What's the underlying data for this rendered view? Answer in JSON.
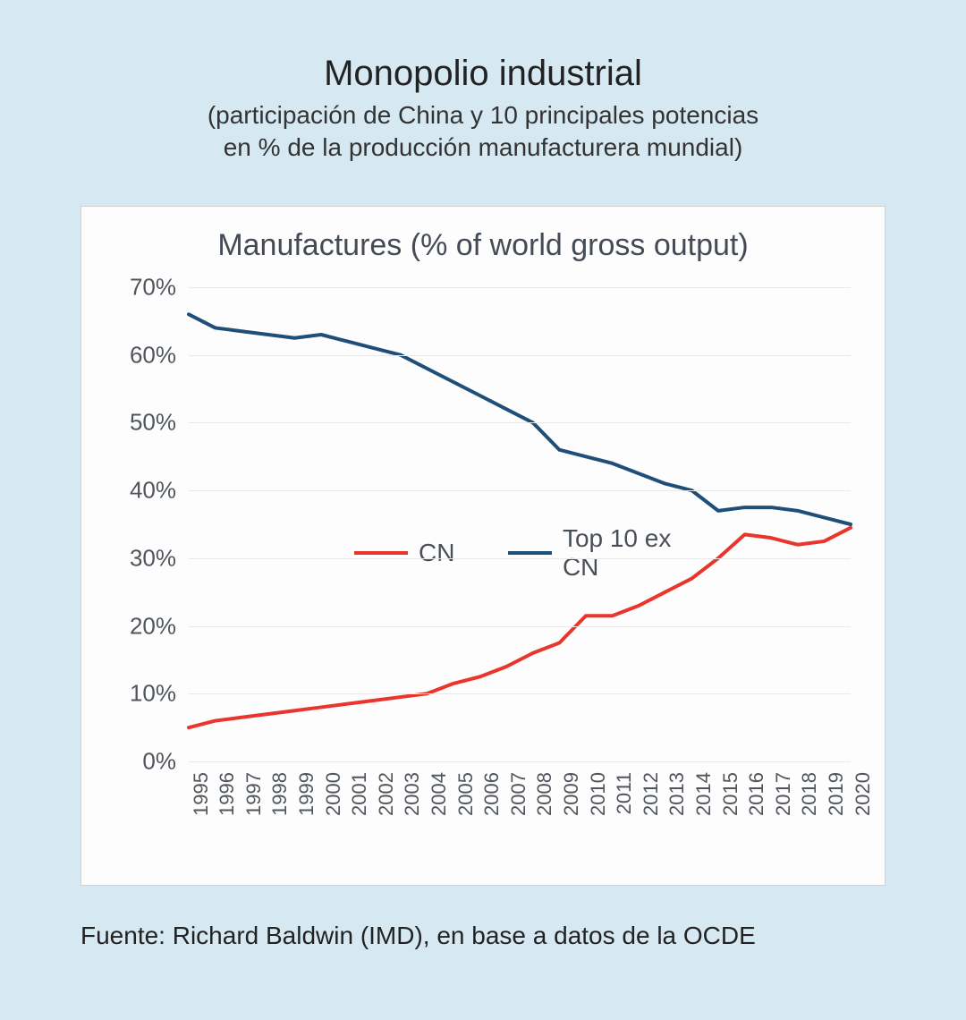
{
  "header": {
    "title": "Monopolio industrial",
    "subtitle_line1": "(participación de China y 10 principales potencias",
    "subtitle_line2": "en % de la producción manufacturera mundial)"
  },
  "chart": {
    "type": "line",
    "title": "Manufactures (% of world gross output)",
    "background_color": "#fdfdfd",
    "page_background": "#d6e9f2",
    "grid_color": "#e8e8e8",
    "text_color": "#50555c",
    "title_fontsize": 34,
    "tick_fontsize": 26,
    "xtick_fontsize": 22,
    "ylim": [
      0,
      70
    ],
    "ytick_step": 10,
    "ytick_labels": [
      "0%",
      "10%",
      "20%",
      "30%",
      "40%",
      "50%",
      "60%",
      "70%"
    ],
    "x_categories": [
      "1995",
      "1996",
      "1997",
      "1998",
      "1999",
      "2000",
      "2001",
      "2002",
      "2003",
      "2004",
      "2005",
      "2006",
      "2007",
      "2008",
      "2009",
      "2010",
      "2011",
      "2012",
      "2013",
      "2014",
      "2015",
      "2016",
      "2017",
      "2018",
      "2019",
      "2020"
    ],
    "series": [
      {
        "name": "CN",
        "label": "CN",
        "color": "#e9352c",
        "line_width": 4,
        "values": [
          5,
          6,
          6.5,
          7,
          7.5,
          8,
          8.5,
          9,
          9.5,
          10,
          11.5,
          12.5,
          14,
          16,
          17.5,
          21.5,
          21.5,
          23,
          25,
          27,
          30,
          33.5,
          33,
          32,
          32.5,
          34.5
        ]
      },
      {
        "name": "Top10exCN",
        "label": "Top  10 ex CN",
        "color": "#1f4e79",
        "line_width": 4,
        "values": [
          66,
          64,
          63.5,
          63,
          62.5,
          63,
          62,
          61,
          60,
          58,
          56,
          54,
          52,
          50,
          46,
          45,
          44,
          42.5,
          41,
          40,
          37,
          37.5,
          37.5,
          37,
          36,
          35
        ]
      }
    ],
    "legend": {
      "y_percent": 50,
      "fontsize": 28
    }
  },
  "source": {
    "label": "Fuente: Richard Baldwin (IMD), en base a datos de la OCDE"
  }
}
